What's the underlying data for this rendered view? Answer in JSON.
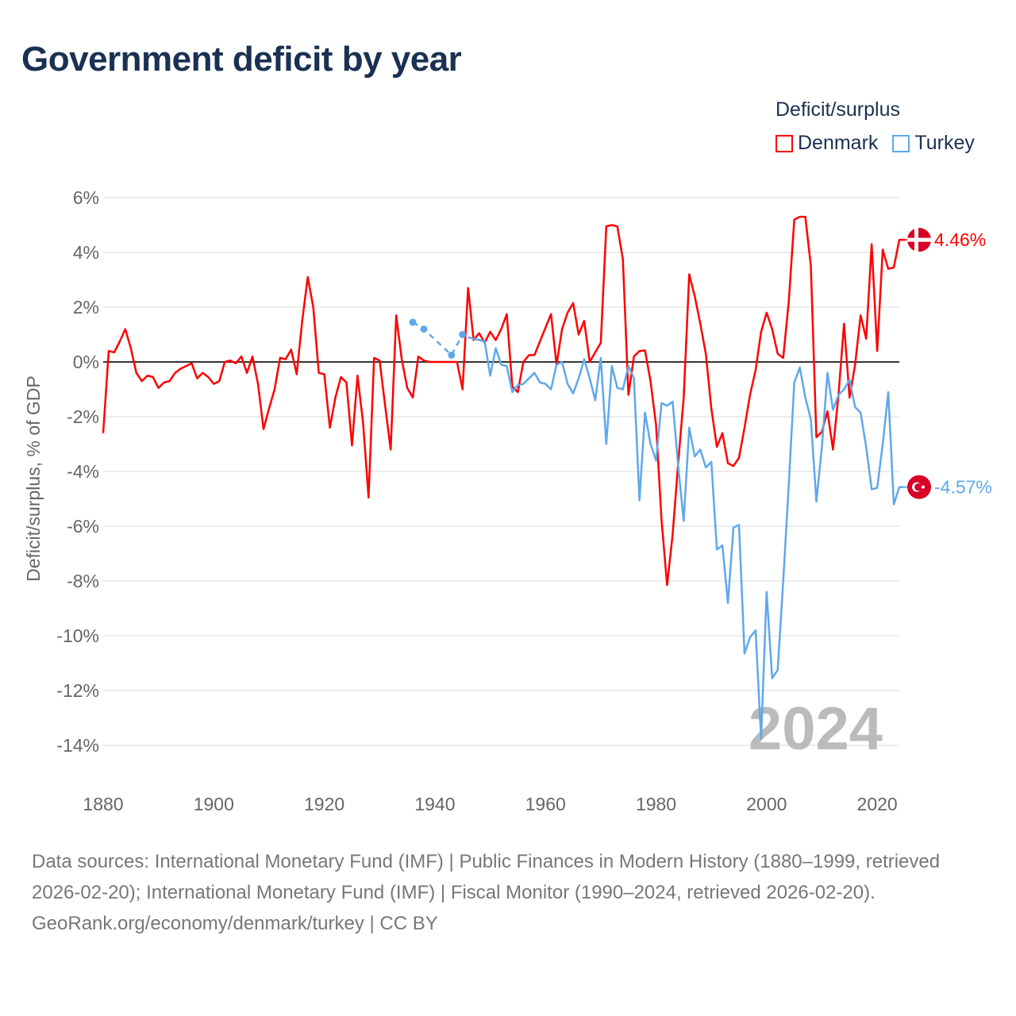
{
  "title": "Government deficit by year",
  "legend": {
    "title": "Deficit/surplus",
    "items": [
      {
        "name": "Denmark",
        "color": "#ff0000"
      },
      {
        "name": "Turkey",
        "color": "#5fa8ea"
      }
    ]
  },
  "watermark_year": "2024",
  "footer": {
    "sources": "Data sources: International Monetary Fund (IMF) | Public Finances in Modern History (1880–1999, retrieved 2026-02-20); International Monetary Fund (IMF) | Fiscal Monitor (1990–2024, retrieved 2026-02-20).",
    "credit": "GeoRank.org/economy/denmark/turkey | CC BY"
  },
  "chart_data": {
    "type": "line",
    "title": "Government deficit by year",
    "xlabel": "",
    "ylabel": "Deficit/surplus, % of GDP",
    "xlim": [
      1880,
      2024
    ],
    "ylim": [
      -14,
      6
    ],
    "x_ticks": [
      1880,
      1900,
      1920,
      1940,
      1960,
      1980,
      2000,
      2020
    ],
    "x_tick_labels": [
      "1880",
      "1900",
      "1920",
      "1940",
      "1960",
      "1980",
      "2000",
      "2020"
    ],
    "y_ticks": [
      6,
      4,
      2,
      0,
      -2,
      -4,
      -6,
      -8,
      -10,
      -12,
      -14
    ],
    "y_tick_labels": [
      "6%",
      "4%",
      "2%",
      "0%",
      "-2%",
      "-4%",
      "-6%",
      "-8%",
      "-10%",
      "-12%",
      "-14%"
    ],
    "grid": true,
    "legend_position": "top-right",
    "series": [
      {
        "name": "Denmark",
        "color": "#ff0000",
        "end_label": "4.46%",
        "x_start": 1880,
        "values": [
          -2.6,
          0.4,
          0.35,
          0.75,
          1.2,
          0.5,
          -0.4,
          -0.7,
          -0.5,
          -0.55,
          -0.95,
          -0.75,
          -0.7,
          -0.4,
          -0.25,
          -0.15,
          -0.05,
          -0.6,
          -0.4,
          -0.55,
          -0.8,
          -0.7,
          0,
          0.05,
          -0.05,
          0.2,
          -0.4,
          0.2,
          -0.8,
          -2.45,
          -1.7,
          -1.0,
          0.15,
          0.1,
          0.45,
          -0.45,
          1.5,
          3.1,
          2.0,
          -0.4,
          -0.45,
          -2.4,
          -1.3,
          -0.55,
          -0.75,
          -3.05,
          -0.5,
          -2.2,
          -4.95,
          0.15,
          0.05,
          -1.6,
          -3.2,
          1.7,
          0.1,
          -0.95,
          -1.3,
          0.2,
          0.05,
          0,
          0,
          0,
          0,
          0,
          0,
          -1.0,
          2.7,
          0.8,
          1.05,
          0.7,
          1.1,
          0.8,
          1.2,
          1.75,
          -0.9,
          -1.1,
          0,
          0.25,
          0.25,
          0.75,
          1.25,
          1.75,
          -0.1,
          1.2,
          1.8,
          2.15,
          1.0,
          1.5,
          0,
          0.35,
          0.7,
          4.95,
          5.0,
          4.95,
          3.75,
          -1.2,
          0.2,
          0.4,
          0.42,
          -0.7,
          -2.3,
          -5.8,
          -8.15,
          -6.3,
          -3.7,
          -1.3,
          3.2,
          2.4,
          1.4,
          0.3,
          -1.7,
          -3.1,
          -2.6,
          -3.7,
          -3.8,
          -3.5,
          -2.4,
          -1.2,
          -0.3,
          1.1,
          1.8,
          1.2,
          0.3,
          0.15,
          2.2,
          5.2,
          5.3,
          5.3,
          3.5,
          -2.75,
          -2.55,
          -1.8,
          -3.2,
          -1.2,
          1.4,
          -1.3,
          -0.1,
          1.7,
          0.85,
          4.3,
          0.4,
          4.1,
          3.4,
          3.45,
          4.46,
          4.46
        ]
      },
      {
        "name": "Turkey",
        "color": "#5fa8ea",
        "end_label": "-4.57%",
        "sparse_points": [
          [
            1936,
            1.45
          ],
          [
            1938,
            1.2
          ],
          [
            1943,
            0.25
          ],
          [
            1945,
            1.0
          ],
          [
            1946,
            0.9
          ]
        ],
        "x_start": 1946,
        "values": [
          0.9,
          0.85,
          0.8,
          0.75,
          -0.5,
          0.5,
          -0.1,
          -0.15,
          -1.1,
          -0.85,
          -0.8,
          -0.6,
          -0.4,
          -0.75,
          -0.8,
          -1.0,
          -0.1,
          0,
          -0.8,
          -1.15,
          -0.6,
          0.1,
          -0.6,
          -1.4,
          0.15,
          -3.0,
          -0.15,
          -0.95,
          -1.0,
          -0.15,
          -0.6,
          -5.05,
          -1.85,
          -3.0,
          -3.6,
          -1.5,
          -1.6,
          -1.45,
          -3.8,
          -5.8,
          -2.4,
          -3.45,
          -3.2,
          -3.85,
          -3.65,
          -6.85,
          -6.7,
          -8.8,
          -6.05,
          -5.95,
          -10.65,
          -10.05,
          -9.8,
          -13.75,
          -8.4,
          -11.55,
          -11.25,
          -8.0,
          -4.5,
          -0.75,
          -0.2,
          -1.3,
          -2.1,
          -5.1,
          -3.1,
          -0.4,
          -1.75,
          -1.2,
          -1.0,
          -0.65,
          -1.65,
          -1.85,
          -3.1,
          -4.65,
          -4.6,
          -3.0,
          -1.1,
          -5.2,
          -4.57,
          -4.57
        ]
      }
    ]
  }
}
